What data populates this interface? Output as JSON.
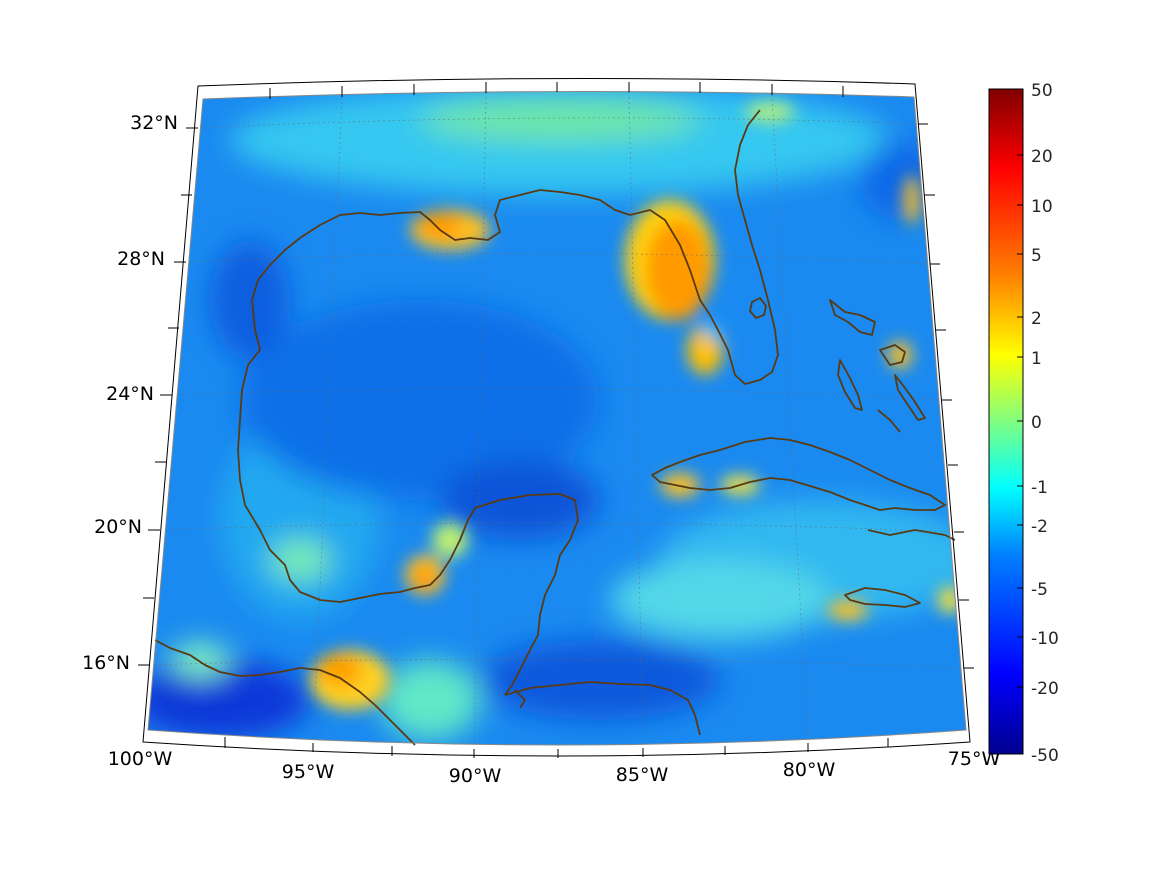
{
  "map": {
    "lon_labels": [
      "100°W",
      "95°W",
      "90°W",
      "85°W",
      "80°W",
      "75°W"
    ],
    "lat_labels": [
      "32°N",
      "28°N",
      "24°N",
      "20°N",
      "16°N"
    ],
    "extent": {
      "lon_min": -100,
      "lon_max": -75,
      "lat_min": 14,
      "lat_max": 32.5
    },
    "coastline_color": "#5a3a12",
    "graticule": "dotted"
  },
  "colorbar": {
    "ticks": [
      "50",
      "20",
      "10",
      "5",
      "2",
      "1",
      "0",
      "-1",
      "-2",
      "-5",
      "-10",
      "-20",
      "-50"
    ],
    "colormap": "jet",
    "colors": [
      "#00008f",
      "#0000ff",
      "#0080ff",
      "#00ffff",
      "#80ff80",
      "#ffff00",
      "#ff8000",
      "#ff0000",
      "#800000"
    ]
  }
}
